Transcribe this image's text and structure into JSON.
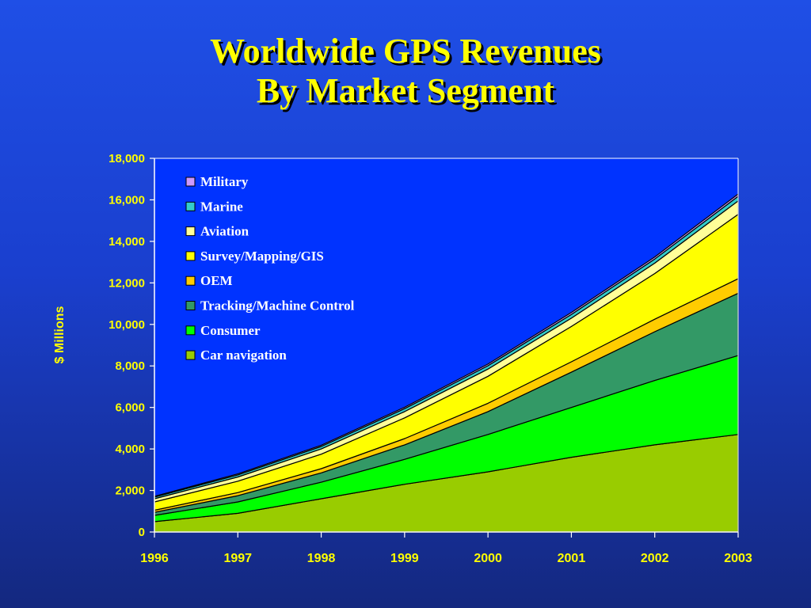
{
  "title": {
    "line1": "Worldwide GPS Revenues",
    "line2": "By Market Segment"
  },
  "chart_data": {
    "type": "area",
    "stacked": true,
    "x": [
      "1996",
      "1997",
      "1998",
      "1999",
      "2000",
      "2001",
      "2002",
      "2003"
    ],
    "ylabel": "$ Millions",
    "xlabel": "",
    "ylim": [
      0,
      18000
    ],
    "yticks": [
      "0",
      "2,000",
      "4,000",
      "6,000",
      "8,000",
      "10,000",
      "12,000",
      "14,000",
      "16,000",
      "18,000"
    ],
    "ytick_values": [
      0,
      2000,
      4000,
      6000,
      8000,
      10000,
      12000,
      14000,
      16000,
      18000
    ],
    "grid": false,
    "legend_position": "top-left",
    "series": [
      {
        "name": "Car navigation",
        "color": "#99cc00",
        "values": [
          500,
          900,
          1600,
          2300,
          2900,
          3600,
          4200,
          4700
        ]
      },
      {
        "name": "Consumer",
        "color": "#00ff00",
        "values": [
          300,
          550,
          800,
          1200,
          1800,
          2400,
          3100,
          3800
        ]
      },
      {
        "name": "Tracking/Machine Control",
        "color": "#339966",
        "values": [
          150,
          300,
          450,
          700,
          1100,
          1700,
          2350,
          3000
        ]
      },
      {
        "name": "OEM",
        "color": "#ffcc00",
        "values": [
          100,
          150,
          200,
          300,
          400,
          500,
          600,
          700
        ]
      },
      {
        "name": "Survey/Mapping/GIS",
        "color": "#ffff00",
        "values": [
          400,
          550,
          700,
          1000,
          1300,
          1700,
          2200,
          3100
        ]
      },
      {
        "name": "Aviation",
        "color": "#ffff99",
        "values": [
          150,
          200,
          250,
          300,
          350,
          400,
          500,
          650
        ]
      },
      {
        "name": "Marine",
        "color": "#33cccc",
        "values": [
          80,
          100,
          120,
          140,
          160,
          180,
          200,
          220
        ]
      },
      {
        "name": "Military",
        "color": "#cc99ff",
        "values": [
          40,
          50,
          60,
          70,
          80,
          90,
          100,
          110
        ]
      }
    ],
    "legend_order": [
      "Military",
      "Marine",
      "Aviation",
      "Survey/Mapping/GIS",
      "OEM",
      "Tracking/Machine Control",
      "Consumer",
      "Car navigation"
    ]
  }
}
